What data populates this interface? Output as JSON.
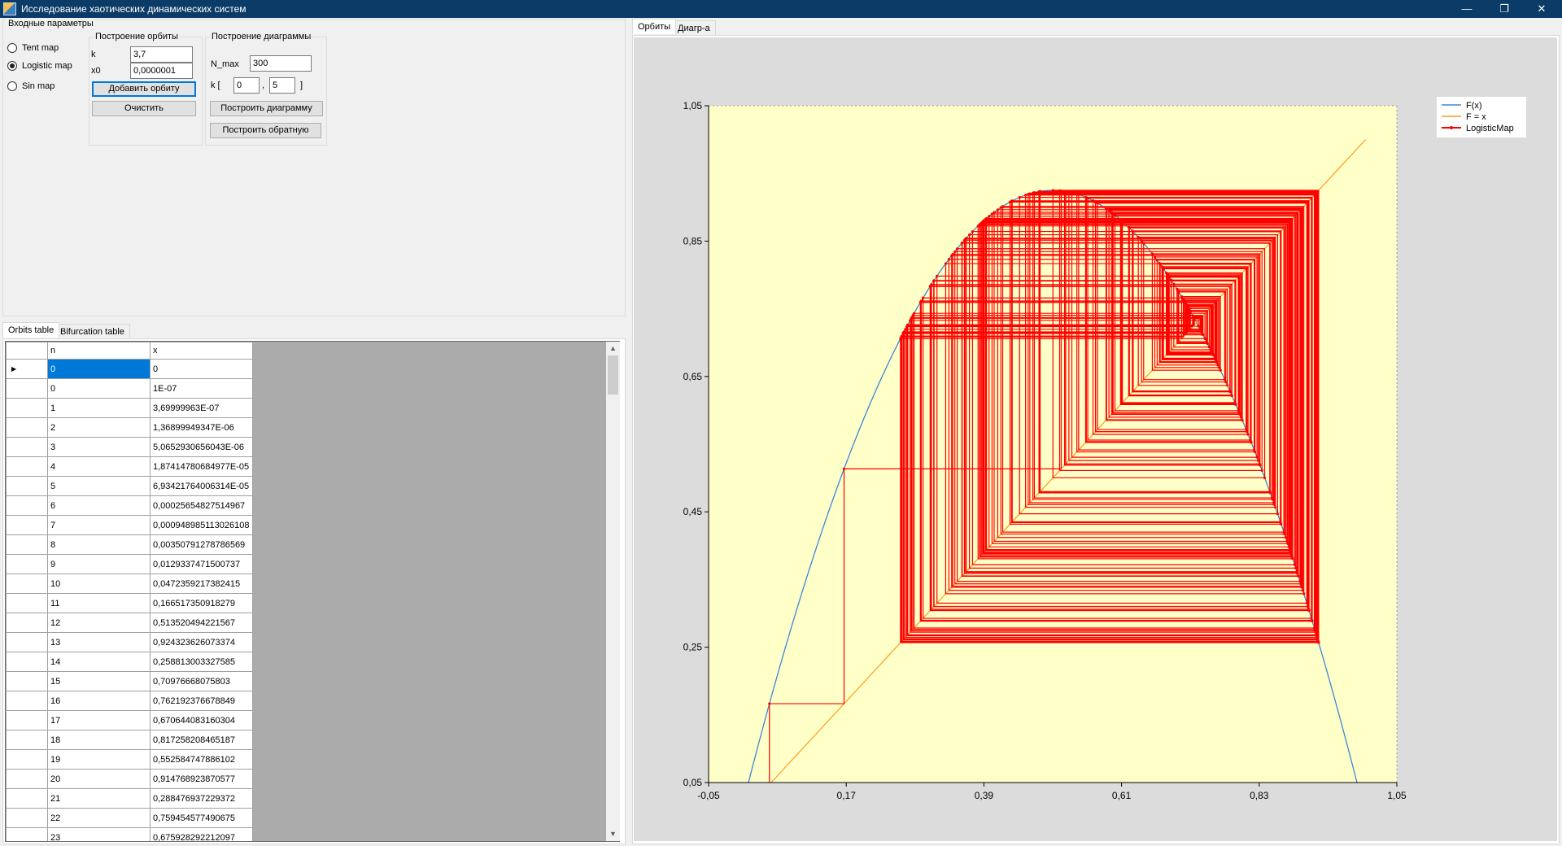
{
  "window": {
    "title": "Исследование хаотических динамических систем",
    "min_label": "—",
    "max_label": "❐",
    "close_label": "✕"
  },
  "params": {
    "caption": "Входные параметры",
    "maps": [
      {
        "label": "Tent map",
        "checked": false
      },
      {
        "label": "Logistic map",
        "checked": true
      },
      {
        "label": "Sin map",
        "checked": false
      }
    ],
    "orbit": {
      "caption": "Построение орбиты",
      "k_label": "k",
      "k_value": "3,7",
      "x0_label": "x0",
      "x0_value": "0,0000001",
      "add_button": "Добавить орбиту",
      "clear_button": "Очистить"
    },
    "diagram": {
      "caption": "Построение диаграммы",
      "nmax_label": "N_max",
      "nmax_value": "300",
      "k_label": "k [",
      "k_from": "0",
      "comma": ",",
      "k_to": "5",
      "bracket_close": "]",
      "build_button": "Построить диаграмму",
      "build_reverse_button": "Построить обратную"
    }
  },
  "left_tabs": [
    "Orbits table",
    "Bifurcation table"
  ],
  "table": {
    "columns": [
      "n",
      "x"
    ],
    "rows": [
      [
        "0",
        "0"
      ],
      [
        "0",
        "1E-07"
      ],
      [
        "1",
        "3,69999963E-07"
      ],
      [
        "2",
        "1,36899949347E-06"
      ],
      [
        "3",
        "5,0652930656043E-06"
      ],
      [
        "4",
        "1,87414780684977E-05"
      ],
      [
        "5",
        "6,93421764006314E-05"
      ],
      [
        "6",
        "0,00025654827514967"
      ],
      [
        "7",
        "0,000948985113026108"
      ],
      [
        "8",
        "0,00350791278786569"
      ],
      [
        "9",
        "0,0129337471500737"
      ],
      [
        "10",
        "0,0472359217382415"
      ],
      [
        "11",
        "0,166517350918279"
      ],
      [
        "12",
        "0,513520494221567"
      ],
      [
        "13",
        "0,924323626073374"
      ],
      [
        "14",
        "0,258813003327585"
      ],
      [
        "15",
        "0,70976668075803"
      ],
      [
        "16",
        "0,762192376678849"
      ],
      [
        "17",
        "0,670644083160304"
      ],
      [
        "18",
        "0,817258208465187"
      ],
      [
        "19",
        "0,552584747886102"
      ],
      [
        "20",
        "0,914768923870577"
      ],
      [
        "21",
        "0,288476937229372"
      ],
      [
        "22",
        "0,759454577490675"
      ],
      [
        "23",
        "0,675928292212097"
      ]
    ]
  },
  "right_tabs": [
    "Орбиты",
    "Диагр-а"
  ],
  "chart_data": {
    "type": "line",
    "xlim": [
      -0.05,
      1.05
    ],
    "ylim": [
      0.05,
      1.05
    ],
    "x_ticks": [
      "-0,05",
      "0,17",
      "0,39",
      "0,61",
      "0,83",
      "1,05"
    ],
    "y_ticks": [
      "1,05",
      "0,85",
      "0,65",
      "0,45",
      "0,25",
      "0,05"
    ],
    "k": 3.7,
    "x0": 1e-07,
    "iterations": 300,
    "plot_background": "#ffffc8",
    "legend_position": "top-right",
    "series": [
      {
        "name": "F(x)",
        "color": "#3b87d6",
        "formula": "k*x*(1-x)"
      },
      {
        "name": "F = x",
        "color": "#ff9b1a",
        "x": [
          0.05,
          1.0
        ],
        "y": [
          0.05,
          1.0
        ]
      },
      {
        "name": "LogisticMap",
        "color": "#ff0000",
        "kind": "cobweb"
      }
    ]
  }
}
